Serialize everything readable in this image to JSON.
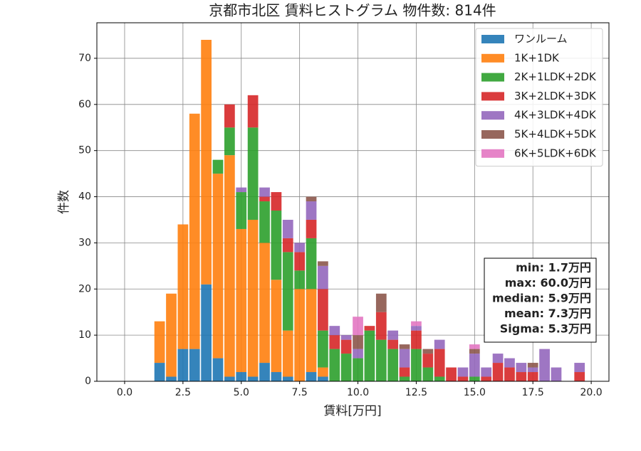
{
  "chart_data": {
    "type": "stacked_histogram",
    "title": "京都市北区 賃料ヒストグラム  物件数: 814件",
    "x_label": "賃料[万円]",
    "y_label": "件数",
    "bins": [
      1.25,
      1.75,
      2.25,
      2.75,
      3.25,
      3.75,
      4.25,
      4.75,
      5.25,
      5.75,
      6.25,
      6.75,
      7.25,
      7.75,
      8.25,
      8.75,
      9.25,
      9.75,
      10.25,
      10.75,
      11.25,
      11.75,
      12.25,
      12.75,
      13.25,
      13.75,
      14.25,
      14.75,
      15.25,
      15.75,
      16.25,
      16.75,
      17.25,
      17.75,
      18.25,
      18.75,
      19.25,
      19.75
    ],
    "series": [
      {
        "name": "ワンルーム",
        "color": "#1f77b4",
        "values": [
          4,
          1,
          7,
          7,
          21,
          5,
          1,
          2,
          1,
          4,
          2,
          1,
          0,
          2,
          1,
          0,
          0,
          0,
          0,
          0,
          0,
          0,
          0,
          0,
          0,
          0,
          0,
          0,
          0,
          0,
          0,
          0,
          0,
          0,
          0,
          0,
          0
        ]
      },
      {
        "name": "1K+1DK",
        "color": "#ff7f0e",
        "values": [
          9,
          18,
          27,
          51,
          53,
          40,
          48,
          31,
          34,
          26,
          20,
          10,
          20,
          18,
          2,
          0,
          0,
          0,
          0,
          0,
          0,
          0,
          0,
          0,
          0,
          0,
          0,
          0,
          0,
          0,
          0,
          0,
          0,
          0,
          0,
          0,
          0
        ]
      },
      {
        "name": "2K+1LDK+2DK",
        "color": "#2ca02c",
        "values": [
          0,
          0,
          0,
          0,
          0,
          3,
          6,
          8,
          20,
          9,
          15,
          17,
          4,
          11,
          8,
          7,
          6,
          5,
          11,
          9,
          7,
          1,
          7,
          3,
          1,
          0,
          0,
          1,
          0,
          0,
          0,
          0,
          0,
          0,
          0,
          0,
          0
        ]
      },
      {
        "name": "3K+2LDK+3DK",
        "color": "#d62728",
        "values": [
          0,
          0,
          0,
          0,
          0,
          0,
          5,
          0,
          7,
          1,
          4,
          3,
          4,
          4,
          9,
          3,
          3,
          0,
          1,
          6,
          2,
          2,
          4,
          3,
          6,
          3,
          1,
          0,
          1,
          4,
          3,
          2,
          2,
          0,
          0,
          0,
          2
        ]
      },
      {
        "name": "4K+3LDK+4DK",
        "color": "#9467bd",
        "values": [
          0,
          0,
          0,
          0,
          0,
          0,
          0,
          1,
          0,
          2,
          0,
          4,
          2,
          4,
          5,
          2,
          1,
          2,
          0,
          0,
          2,
          4,
          1,
          0,
          2,
          0,
          2,
          5,
          2,
          2,
          2,
          2,
          1,
          7,
          3,
          0,
          2
        ]
      },
      {
        "name": "5K+4LDK+5DK",
        "color": "#8c564b",
        "values": [
          0,
          0,
          0,
          0,
          0,
          0,
          0,
          0,
          0,
          0,
          0,
          0,
          0,
          1,
          1,
          0,
          0,
          3,
          0,
          4,
          0,
          1,
          0,
          1,
          0,
          0,
          0,
          1,
          0,
          0,
          0,
          0,
          1,
          0,
          0,
          0,
          0
        ]
      },
      {
        "name": "6K+5LDK+6DK",
        "color": "#e377c2",
        "values": [
          0,
          0,
          0,
          0,
          0,
          0,
          0,
          0,
          0,
          0,
          0,
          0,
          0,
          0,
          0,
          0,
          0,
          4,
          0,
          0,
          0,
          0,
          1,
          0,
          0,
          0,
          0,
          1,
          0,
          0,
          0,
          0,
          0,
          0,
          0,
          0,
          0
        ]
      }
    ],
    "xlim": [
      -1.19,
      20.76
    ],
    "ylim": [
      0,
      77.7
    ],
    "xticks": [
      {
        "value": 0,
        "label": "0.0"
      },
      {
        "value": 2.5,
        "label": "2.5"
      },
      {
        "value": 5,
        "label": "5.0"
      },
      {
        "value": 7.5,
        "label": "7.5"
      },
      {
        "value": 10,
        "label": "10.0"
      },
      {
        "value": 12.5,
        "label": "12.5"
      },
      {
        "value": 15,
        "label": "15.0"
      },
      {
        "value": 17.5,
        "label": "17.5"
      },
      {
        "value": 20,
        "label": "20.0"
      }
    ],
    "yticks": [
      0,
      10,
      20,
      30,
      40,
      50,
      60,
      70
    ],
    "grid": true,
    "legend": "upper right",
    "stats": [
      "min: 1.7万円",
      "max: 60.0万円",
      "median: 5.9万円",
      "mean: 7.3万円",
      "Sigma: 5.3万円"
    ]
  }
}
